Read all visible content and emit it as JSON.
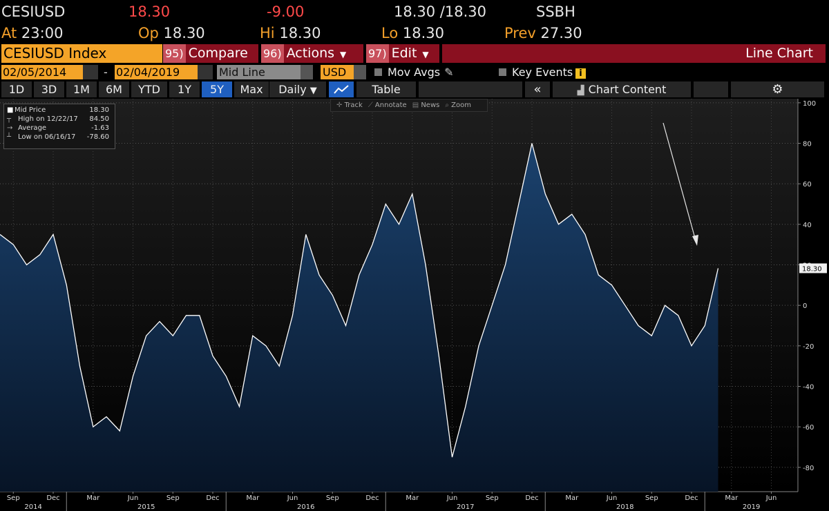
{
  "header": {
    "ticker": "CESIUSD",
    "last": "18.30",
    "change": "-9.00",
    "bid_ask": "18.30 /18.30",
    "source": "SSBH",
    "at_label": "At",
    "at": "23:00",
    "open_label": "Op",
    "open": "18.30",
    "high_label": "Hi",
    "high": "18.30",
    "low_label": "Lo",
    "low": "18.30",
    "prev_label": "Prev",
    "prev": "27.30"
  },
  "menu": {
    "security": "CESIUSD Index",
    "buttons": [
      {
        "num": "95)",
        "label": "Compare"
      },
      {
        "num": "96)",
        "label": "Actions"
      },
      {
        "num": "97)",
        "label": "Edit"
      }
    ],
    "view": "Line Chart"
  },
  "controls": {
    "start": "02/05/2014",
    "end": "02/04/2019",
    "mode": "Mid Line",
    "currency": "USD",
    "mov_avgs": "Mov Avgs",
    "key_events": "Key Events"
  },
  "toolbar": {
    "periods": [
      "1D",
      "3D",
      "1M",
      "6M",
      "YTD",
      "1Y",
      "5Y",
      "Max"
    ],
    "selected": 6,
    "frequency": "Daily",
    "table": "Table",
    "chart_content": "Chart Content"
  },
  "tools": [
    "Track",
    "Annotate",
    "News",
    "Zoom"
  ],
  "legend": [
    {
      "label": "Mid Price",
      "value": "18.30"
    },
    {
      "label": "High on 12/22/17",
      "value": "84.50"
    },
    {
      "label": "Average",
      "value": "-1.63"
    },
    {
      "label": "Low on 06/16/17",
      "value": "-78.60"
    }
  ],
  "chart_data": {
    "type": "line",
    "color": "#ffffff",
    "area_color": "#1b426e",
    "x": [
      "2014-08",
      "2014-09",
      "2014-10",
      "2014-11",
      "2014-12",
      "2015-01",
      "2015-02",
      "2015-03",
      "2015-04",
      "2015-05",
      "2015-06",
      "2015-07",
      "2015-08",
      "2015-09",
      "2015-10",
      "2015-11",
      "2015-12",
      "2016-01",
      "2016-02",
      "2016-03",
      "2016-04",
      "2016-05",
      "2016-06",
      "2016-07",
      "2016-08",
      "2016-09",
      "2016-10",
      "2016-11",
      "2016-12",
      "2017-01",
      "2017-02",
      "2017-03",
      "2017-04",
      "2017-05",
      "2017-06",
      "2017-07",
      "2017-08",
      "2017-09",
      "2017-10",
      "2017-11",
      "2017-12",
      "2018-01",
      "2018-02",
      "2018-03",
      "2018-04",
      "2018-05",
      "2018-06",
      "2018-07",
      "2018-08",
      "2018-09",
      "2018-10",
      "2018-11",
      "2018-12",
      "2019-01",
      "2019-02"
    ],
    "values": [
      35,
      30,
      20,
      25,
      35,
      10,
      -30,
      -60,
      -55,
      -62,
      -35,
      -15,
      -8,
      -15,
      -5,
      -5,
      -25,
      -35,
      -50,
      -15,
      -20,
      -30,
      -5,
      35,
      15,
      5,
      -10,
      15,
      30,
      50,
      40,
      55,
      20,
      -25,
      -75,
      -50,
      -20,
      0,
      20,
      50,
      80,
      55,
      40,
      45,
      35,
      15,
      10,
      0,
      -10,
      -15,
      0,
      -5,
      -20,
      -10,
      18.3
    ],
    "last_value_label": "18.30",
    "xlim": [
      "2014-08",
      "2019-08"
    ],
    "xticks": [
      {
        "value": "2014-09",
        "label": "Sep"
      },
      {
        "value": "2014-12",
        "label": "Dec"
      },
      {
        "value": "2015-03",
        "label": "Mar"
      },
      {
        "value": "2015-06",
        "label": "Jun"
      },
      {
        "value": "2015-09",
        "label": "Sep"
      },
      {
        "value": "2015-12",
        "label": "Dec"
      },
      {
        "value": "2016-03",
        "label": "Mar"
      },
      {
        "value": "2016-06",
        "label": "Jun"
      },
      {
        "value": "2016-09",
        "label": "Sep"
      },
      {
        "value": "2016-12",
        "label": "Dec"
      },
      {
        "value": "2017-03",
        "label": "Mar"
      },
      {
        "value": "2017-06",
        "label": "Jun"
      },
      {
        "value": "2017-09",
        "label": "Sep"
      },
      {
        "value": "2017-12",
        "label": "Dec"
      },
      {
        "value": "2018-03",
        "label": "Mar"
      },
      {
        "value": "2018-06",
        "label": "Jun"
      },
      {
        "value": "2018-09",
        "label": "Sep"
      },
      {
        "value": "2018-12",
        "label": "Dec"
      },
      {
        "value": "2019-03",
        "label": "Mar"
      },
      {
        "value": "2019-06",
        "label": "Jun"
      }
    ],
    "years": [
      "2014",
      "2015",
      "2016",
      "2017",
      "2018",
      "2019"
    ],
    "ylim": [
      -92,
      102
    ],
    "yticks": [
      -80,
      -60,
      -40,
      -20,
      0,
      20,
      40,
      60,
      80,
      100
    ],
    "grid": true
  }
}
